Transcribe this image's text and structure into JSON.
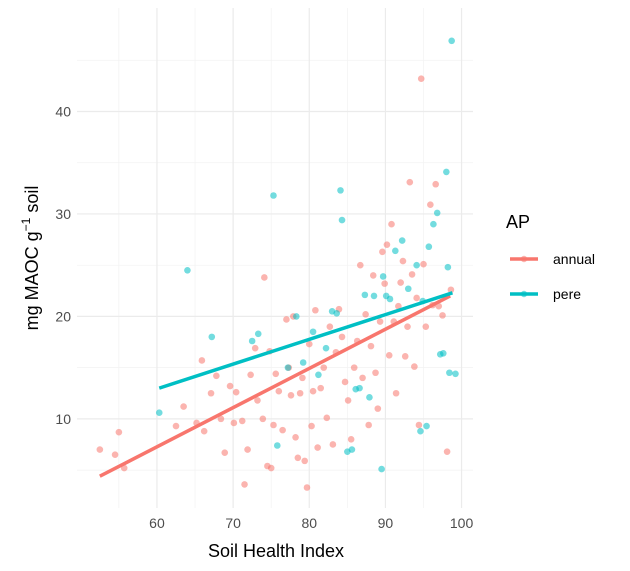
{
  "chart_data": {
    "type": "scatter",
    "xlabel": "Soil Health Index",
    "ylabel": {
      "main": "mg MAOC g",
      "sup": "−1",
      "tail": " soil"
    },
    "xlim": [
      49.5,
      101.5
    ],
    "ylim": [
      1.3,
      50.1
    ],
    "x_ticks": [
      60,
      70,
      80,
      90,
      100
    ],
    "y_ticks": [
      10,
      20,
      30,
      40
    ],
    "x_minor": [
      55,
      65,
      75,
      85,
      95
    ],
    "y_minor": [
      5,
      15,
      25,
      35,
      45
    ],
    "grid": true,
    "legend": {
      "title": "AP",
      "position": "right",
      "entries": [
        {
          "label": "annual",
          "color": "#F8766D"
        },
        {
          "label": "pere",
          "color": "#00BFC4"
        }
      ]
    },
    "series": [
      {
        "name": "annual",
        "color": "#F8766D",
        "trend": [
          [
            52.5,
            4.4
          ],
          [
            98.5,
            22.0
          ]
        ],
        "points": [
          [
            52.5,
            7.0
          ],
          [
            54.5,
            6.5
          ],
          [
            55.0,
            8.7
          ],
          [
            55.7,
            5.2
          ],
          [
            62.5,
            9.3
          ],
          [
            63.5,
            11.2
          ],
          [
            65.2,
            9.6
          ],
          [
            65.9,
            15.7
          ],
          [
            66.2,
            8.8
          ],
          [
            67.1,
            12.5
          ],
          [
            67.8,
            14.2
          ],
          [
            68.4,
            10.0
          ],
          [
            68.9,
            6.7
          ],
          [
            69.6,
            13.2
          ],
          [
            70.1,
            9.6
          ],
          [
            70.4,
            12.6
          ],
          [
            71.2,
            9.8
          ],
          [
            71.5,
            3.6
          ],
          [
            71.9,
            7.0
          ],
          [
            72.3,
            14.3
          ],
          [
            72.9,
            16.9
          ],
          [
            73.2,
            11.8
          ],
          [
            73.9,
            10.0
          ],
          [
            74.1,
            23.8
          ],
          [
            74.5,
            5.4
          ],
          [
            74.8,
            16.6
          ],
          [
            75.0,
            5.2
          ],
          [
            75.3,
            9.4
          ],
          [
            75.6,
            14.4
          ],
          [
            76.0,
            12.7
          ],
          [
            76.5,
            8.9
          ],
          [
            77.0,
            19.7
          ],
          [
            77.3,
            15.0
          ],
          [
            77.6,
            12.3
          ],
          [
            77.9,
            20.0
          ],
          [
            78.2,
            8.2
          ],
          [
            78.5,
            6.2
          ],
          [
            78.8,
            12.5
          ],
          [
            79.1,
            14.0
          ],
          [
            79.4,
            5.9
          ],
          [
            79.7,
            3.3
          ],
          [
            80.0,
            17.3
          ],
          [
            80.3,
            9.3
          ],
          [
            80.5,
            12.7
          ],
          [
            80.8,
            20.6
          ],
          [
            81.1,
            7.2
          ],
          [
            81.5,
            13.0
          ],
          [
            81.9,
            15.0
          ],
          [
            82.3,
            10.1
          ],
          [
            82.7,
            19.0
          ],
          [
            83.1,
            7.5
          ],
          [
            83.5,
            16.5
          ],
          [
            83.9,
            20.7
          ],
          [
            84.3,
            18.0
          ],
          [
            84.7,
            13.6
          ],
          [
            85.1,
            11.8
          ],
          [
            85.5,
            8.0
          ],
          [
            85.9,
            15.0
          ],
          [
            86.3,
            17.6
          ],
          [
            86.7,
            25.0
          ],
          [
            87.0,
            14.0
          ],
          [
            87.4,
            20.2
          ],
          [
            87.8,
            9.4
          ],
          [
            88.1,
            17.1
          ],
          [
            88.4,
            24.0
          ],
          [
            88.7,
            14.5
          ],
          [
            89.0,
            11.0
          ],
          [
            89.3,
            19.5
          ],
          [
            89.6,
            26.3
          ],
          [
            89.9,
            23.2
          ],
          [
            90.2,
            27.0
          ],
          [
            90.5,
            16.2
          ],
          [
            90.8,
            29.0
          ],
          [
            91.1,
            19.5
          ],
          [
            91.4,
            12.5
          ],
          [
            91.7,
            21.0
          ],
          [
            92.0,
            23.3
          ],
          [
            92.3,
            25.4
          ],
          [
            92.6,
            16.1
          ],
          [
            92.9,
            19.0
          ],
          [
            93.2,
            33.1
          ],
          [
            93.5,
            24.1
          ],
          [
            93.8,
            15.1
          ],
          [
            94.1,
            21.8
          ],
          [
            94.4,
            9.4
          ],
          [
            94.7,
            43.2
          ],
          [
            95.0,
            25.1
          ],
          [
            95.3,
            19.0
          ],
          [
            95.9,
            30.9
          ],
          [
            96.2,
            21.1
          ],
          [
            96.6,
            32.9
          ],
          [
            97.0,
            21.0
          ],
          [
            97.5,
            20.1
          ],
          [
            98.1,
            6.8
          ],
          [
            98.6,
            22.6
          ]
        ]
      },
      {
        "name": "pere",
        "color": "#00BFC4",
        "trend": [
          [
            60.3,
            13.0
          ],
          [
            98.8,
            22.3
          ]
        ],
        "points": [
          [
            60.3,
            10.6
          ],
          [
            64.0,
            24.5
          ],
          [
            67.2,
            18.0
          ],
          [
            72.5,
            17.6
          ],
          [
            73.3,
            18.3
          ],
          [
            75.3,
            31.8
          ],
          [
            75.8,
            7.4
          ],
          [
            77.2,
            15.0
          ],
          [
            78.3,
            20.0
          ],
          [
            79.2,
            15.5
          ],
          [
            80.5,
            18.5
          ],
          [
            81.2,
            14.3
          ],
          [
            82.2,
            16.9
          ],
          [
            83.0,
            20.5
          ],
          [
            83.6,
            20.3
          ],
          [
            84.1,
            32.3
          ],
          [
            84.3,
            29.4
          ],
          [
            85.0,
            6.8
          ],
          [
            85.6,
            7.0
          ],
          [
            86.1,
            12.9
          ],
          [
            86.6,
            13.0
          ],
          [
            87.3,
            22.1
          ],
          [
            87.9,
            12.1
          ],
          [
            88.5,
            22.0
          ],
          [
            89.5,
            5.1
          ],
          [
            89.7,
            23.9
          ],
          [
            90.1,
            22.0
          ],
          [
            90.6,
            21.7
          ],
          [
            91.3,
            26.4
          ],
          [
            92.2,
            27.4
          ],
          [
            93.0,
            22.7
          ],
          [
            94.1,
            25.0
          ],
          [
            94.6,
            8.8
          ],
          [
            94.9,
            21.5
          ],
          [
            95.4,
            9.3
          ],
          [
            95.7,
            26.8
          ],
          [
            96.3,
            29.0
          ],
          [
            96.8,
            30.1
          ],
          [
            97.2,
            16.3
          ],
          [
            97.6,
            16.4
          ],
          [
            98.0,
            34.1
          ],
          [
            98.2,
            24.8
          ],
          [
            98.4,
            14.5
          ],
          [
            98.7,
            46.9
          ],
          [
            99.2,
            14.4
          ]
        ]
      }
    ]
  }
}
